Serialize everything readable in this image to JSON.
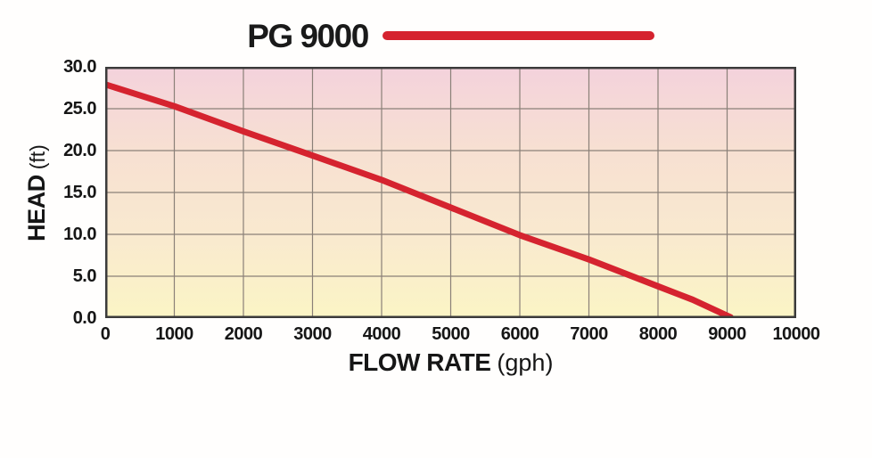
{
  "chart_data": {
    "type": "line",
    "title": "PG 9000",
    "xlabel": "FLOW RATE",
    "xlabel_unit": "(gph)",
    "ylabel": "HEAD",
    "ylabel_unit": "(ft)",
    "xlim": [
      0,
      10000
    ],
    "ylim": [
      0,
      30
    ],
    "x_ticks": [
      0,
      1000,
      2000,
      3000,
      4000,
      5000,
      6000,
      7000,
      8000,
      9000,
      10000
    ],
    "x_tick_labels": [
      "0",
      "1000",
      "2000",
      "3000",
      "4000",
      "5000",
      "6000",
      "7000",
      "8000",
      "9000",
      "10000"
    ],
    "y_ticks": [
      0,
      5,
      10,
      15,
      20,
      25,
      30
    ],
    "y_tick_labels": [
      "0.0",
      "5.0",
      "10.0",
      "15.0",
      "20.0",
      "25.0",
      "30.0"
    ],
    "grid": true,
    "legend_position": "top-center",
    "plot_background_gradient": {
      "direction": "top-to-bottom",
      "stops": [
        "#f4d2dc",
        "#f7e0d2",
        "#f9e9cf",
        "#fbf5c5"
      ]
    },
    "series": [
      {
        "name": "PG 9000",
        "color": "#d5232f",
        "line_width": 7,
        "points": [
          [
            0,
            27.9
          ],
          [
            1000,
            25.3
          ],
          [
            2000,
            22.3
          ],
          [
            3000,
            19.4
          ],
          [
            4000,
            16.5
          ],
          [
            5000,
            13.2
          ],
          [
            6000,
            9.9
          ],
          [
            7000,
            7.0
          ],
          [
            8000,
            3.8
          ],
          [
            8500,
            2.2
          ],
          [
            9050,
            0.1
          ]
        ]
      }
    ],
    "colors": {
      "grid": "#8a8078",
      "border": "#3b3b3b",
      "text": "#161616"
    }
  }
}
